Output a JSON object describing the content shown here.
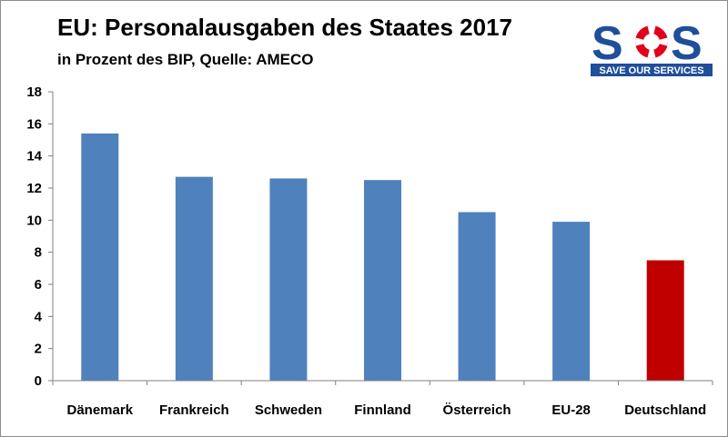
{
  "chart_data": {
    "type": "bar",
    "title": "EU: Personalausgaben des Staates 2017",
    "subtitle": "in Prozent des BIP, Quelle: AMECO",
    "categories": [
      "Dänemark",
      "Frankreich",
      "Schweden",
      "Finnland",
      "Österreich",
      "EU-28",
      "Deutschland"
    ],
    "values": [
      15.4,
      12.7,
      12.6,
      12.5,
      10.5,
      9.9,
      7.5
    ],
    "colors": [
      "#4f81bd",
      "#4f81bd",
      "#4f81bd",
      "#4f81bd",
      "#4f81bd",
      "#4f81bd",
      "#c00000"
    ],
    "ylim": [
      0,
      18
    ],
    "yticks": [
      0,
      2,
      4,
      6,
      8,
      10,
      12,
      14,
      16,
      18
    ],
    "grid": false,
    "legend": "none"
  },
  "logo": {
    "text": "SOS",
    "tagline": "SAVE OUR SERVICES",
    "icon": "lifebuoy-icon",
    "color_blue": "#1f4e9a",
    "color_red": "#e0001b"
  }
}
